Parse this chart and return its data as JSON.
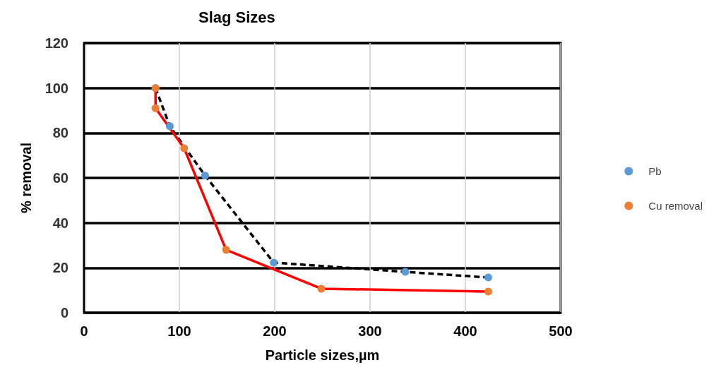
{
  "chart_data": {
    "type": "line",
    "title": "Slag Sizes",
    "xlabel": "Particle sizes,µm",
    "ylabel": "% removal",
    "series": [
      {
        "name": "Pb",
        "color": "#000000",
        "colors": [
          "#5b9bd5",
          "#5b9bd5",
          "#5b9bd5",
          "#5b9bd5",
          "#5b9bd5",
          "#5b9bd5"
        ],
        "line_style": "dashed",
        "x": [
          75,
          90,
          127,
          199,
          337,
          424
        ],
        "values": [
          100,
          83,
          61,
          22.3,
          18.2,
          15.7
        ]
      },
      {
        "name": "Cu removal",
        "color": "#ff0000",
        "colors": [
          "#ed7d31",
          "#ed7d31",
          "#ed7d31",
          "#ed7d31",
          "#ed7d31",
          "#ed7d31"
        ],
        "line_style": "solid",
        "x": [
          75,
          75,
          105,
          149,
          249,
          424
        ],
        "values": [
          100,
          91,
          73.2,
          28,
          10.7,
          9.4
        ]
      }
    ],
    "xlim": [
      0,
      500
    ],
    "xticks": [
      0,
      100,
      200,
      300,
      400,
      500
    ],
    "ylim": [
      0,
      120
    ],
    "yticks": [
      0,
      20,
      40,
      60,
      80,
      100,
      120
    ],
    "grid": true,
    "legend": "right",
    "marker": "circle"
  }
}
